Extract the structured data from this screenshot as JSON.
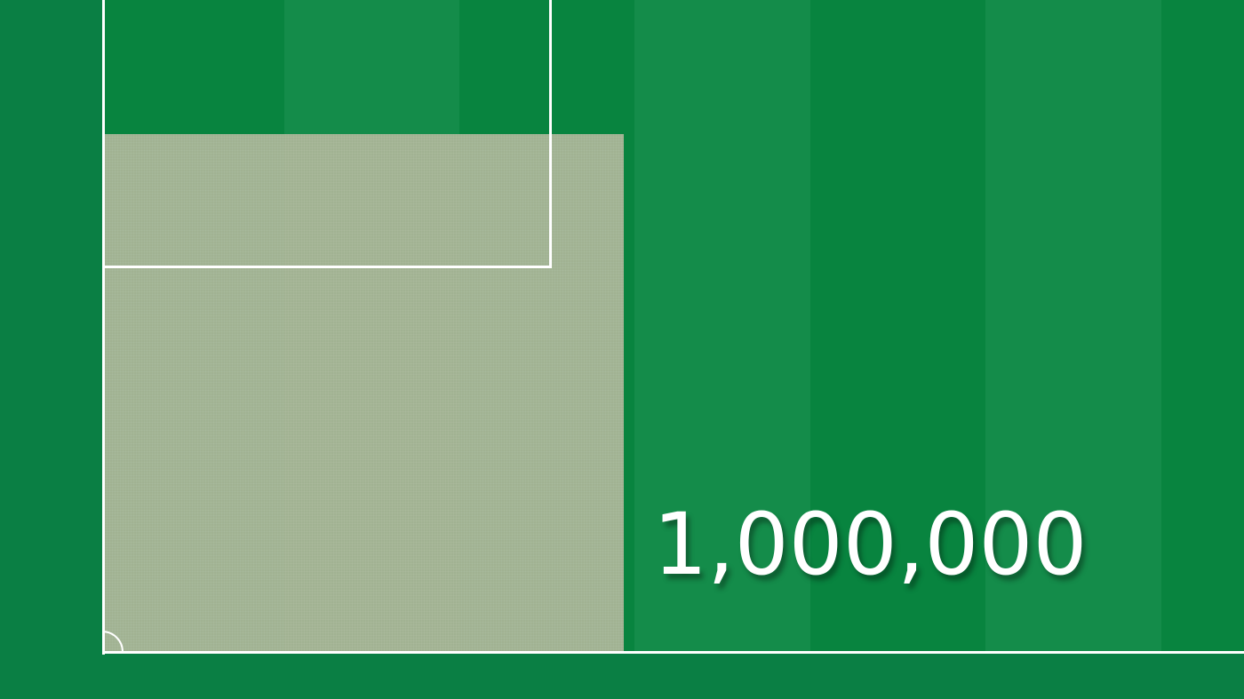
{
  "scene": {
    "pitch_colors": {
      "dark": "#08843f",
      "light": "#148c4a",
      "surround": "#0a7f44"
    },
    "line_color": "#ffffff",
    "highlight_color": "#a6b495"
  },
  "counter": {
    "value": "1,000,000"
  }
}
